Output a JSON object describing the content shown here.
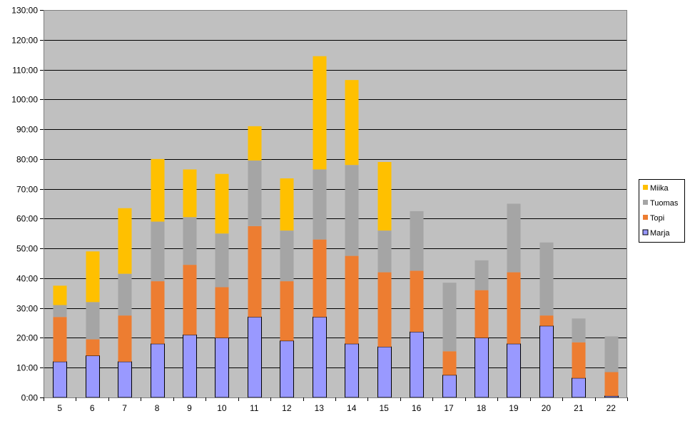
{
  "chart_data": {
    "type": "bar",
    "stacked": true,
    "categories": [
      "5",
      "6",
      "7",
      "8",
      "9",
      "10",
      "11",
      "12",
      "13",
      "14",
      "15",
      "16",
      "17",
      "18",
      "19",
      "20",
      "21",
      "22"
    ],
    "series": [
      {
        "name": "Marja",
        "color": "#9999ff",
        "values": [
          12,
          14,
          12,
          18,
          21,
          20,
          27,
          19,
          27,
          18,
          17,
          22,
          7.5,
          20,
          18,
          24,
          6.5,
          0.5
        ]
      },
      {
        "name": "Topi",
        "color": "#ed7d31",
        "values": [
          15,
          5.5,
          15.5,
          21,
          23.5,
          17,
          30.5,
          20,
          26,
          29.5,
          25,
          20.5,
          8,
          16,
          24,
          3.5,
          12,
          8
        ]
      },
      {
        "name": "Tuomas",
        "color": "#a5a5a5",
        "values": [
          4,
          12.5,
          14,
          20,
          16,
          18,
          22,
          17,
          23.5,
          30.5,
          14,
          20,
          23,
          10,
          23,
          24.5,
          8,
          12
        ]
      },
      {
        "name": "Miika",
        "color": "#ffc000",
        "values": [
          6.5,
          17,
          22,
          21,
          16,
          20,
          11.5,
          17.5,
          38,
          28.5,
          23,
          0,
          0,
          0,
          0,
          0,
          0,
          0
        ]
      }
    ],
    "y_ticks": [
      "0:00",
      "10:00",
      "20:00",
      "30:00",
      "40:00",
      "50:00",
      "60:00",
      "70:00",
      "80:00",
      "90:00",
      "100:00",
      "110:00",
      "120:00",
      "130:00"
    ],
    "ylim": [
      0,
      130
    ],
    "grid": true,
    "legend_position": "right",
    "legend_order": [
      "Miika",
      "Tuomas",
      "Topi",
      "Marja"
    ],
    "plot_background": "#c0c0c0"
  }
}
